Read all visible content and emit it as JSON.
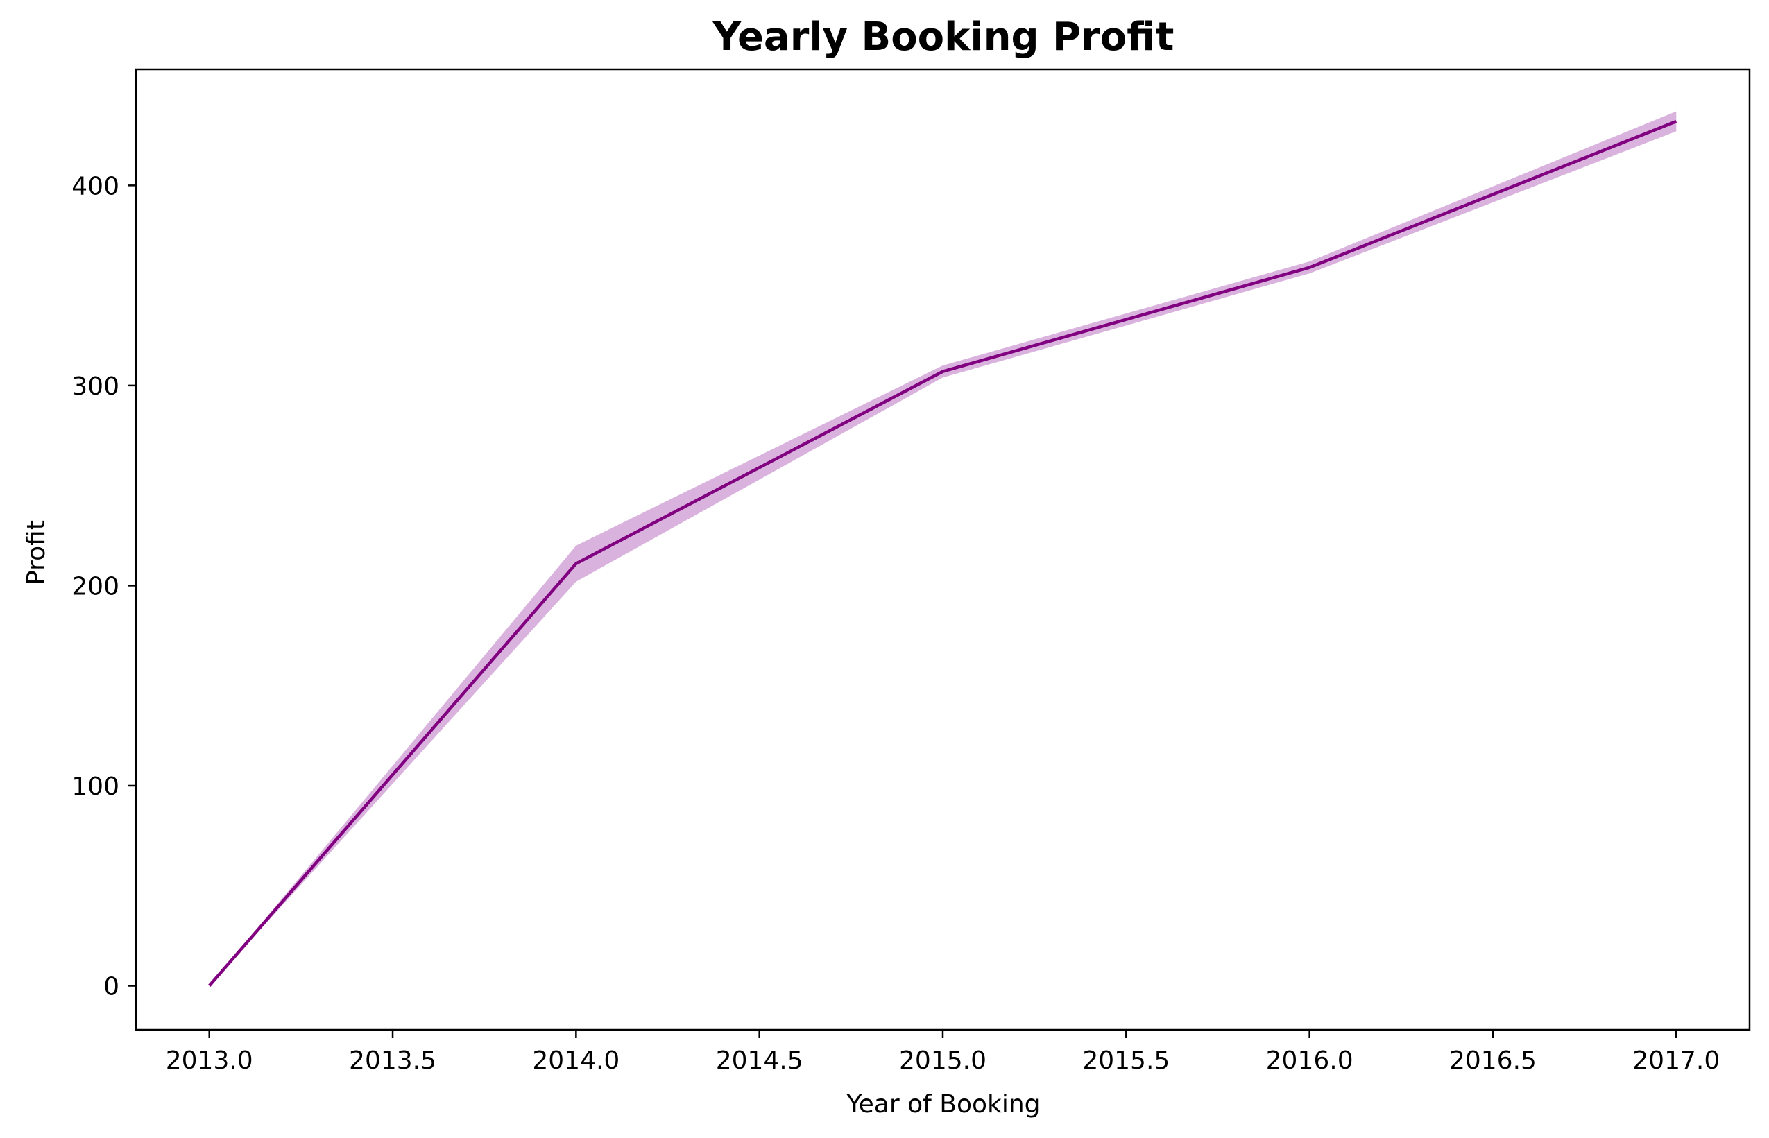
{
  "chart_data": {
    "type": "line",
    "title": "Yearly Booking Profit",
    "xlabel": "Year of Booking",
    "ylabel": "Profit",
    "x": [
      2013.0,
      2014.0,
      2015.0,
      2016.0,
      2017.0
    ],
    "y": [
      0,
      211,
      307,
      359,
      432
    ],
    "ci_lower": [
      0,
      202,
      304,
      356,
      427
    ],
    "ci_upper": [
      0,
      220,
      310,
      362,
      437
    ],
    "xlim": [
      2012.8,
      2017.2
    ],
    "ylim": [
      -22,
      458
    ],
    "xticks": [
      2013.0,
      2013.5,
      2014.0,
      2014.5,
      2015.0,
      2015.5,
      2016.0,
      2016.5,
      2017.0
    ],
    "xtick_labels": [
      "2013.0",
      "2013.5",
      "2014.0",
      "2014.5",
      "2015.0",
      "2015.5",
      "2016.0",
      "2016.5",
      "2017.0"
    ],
    "yticks": [
      0,
      100,
      200,
      300,
      400
    ],
    "ytick_labels": [
      "0",
      "100",
      "200",
      "300",
      "400"
    ],
    "grid": false,
    "line_color": "#800080",
    "band_color": "#c080c8"
  }
}
